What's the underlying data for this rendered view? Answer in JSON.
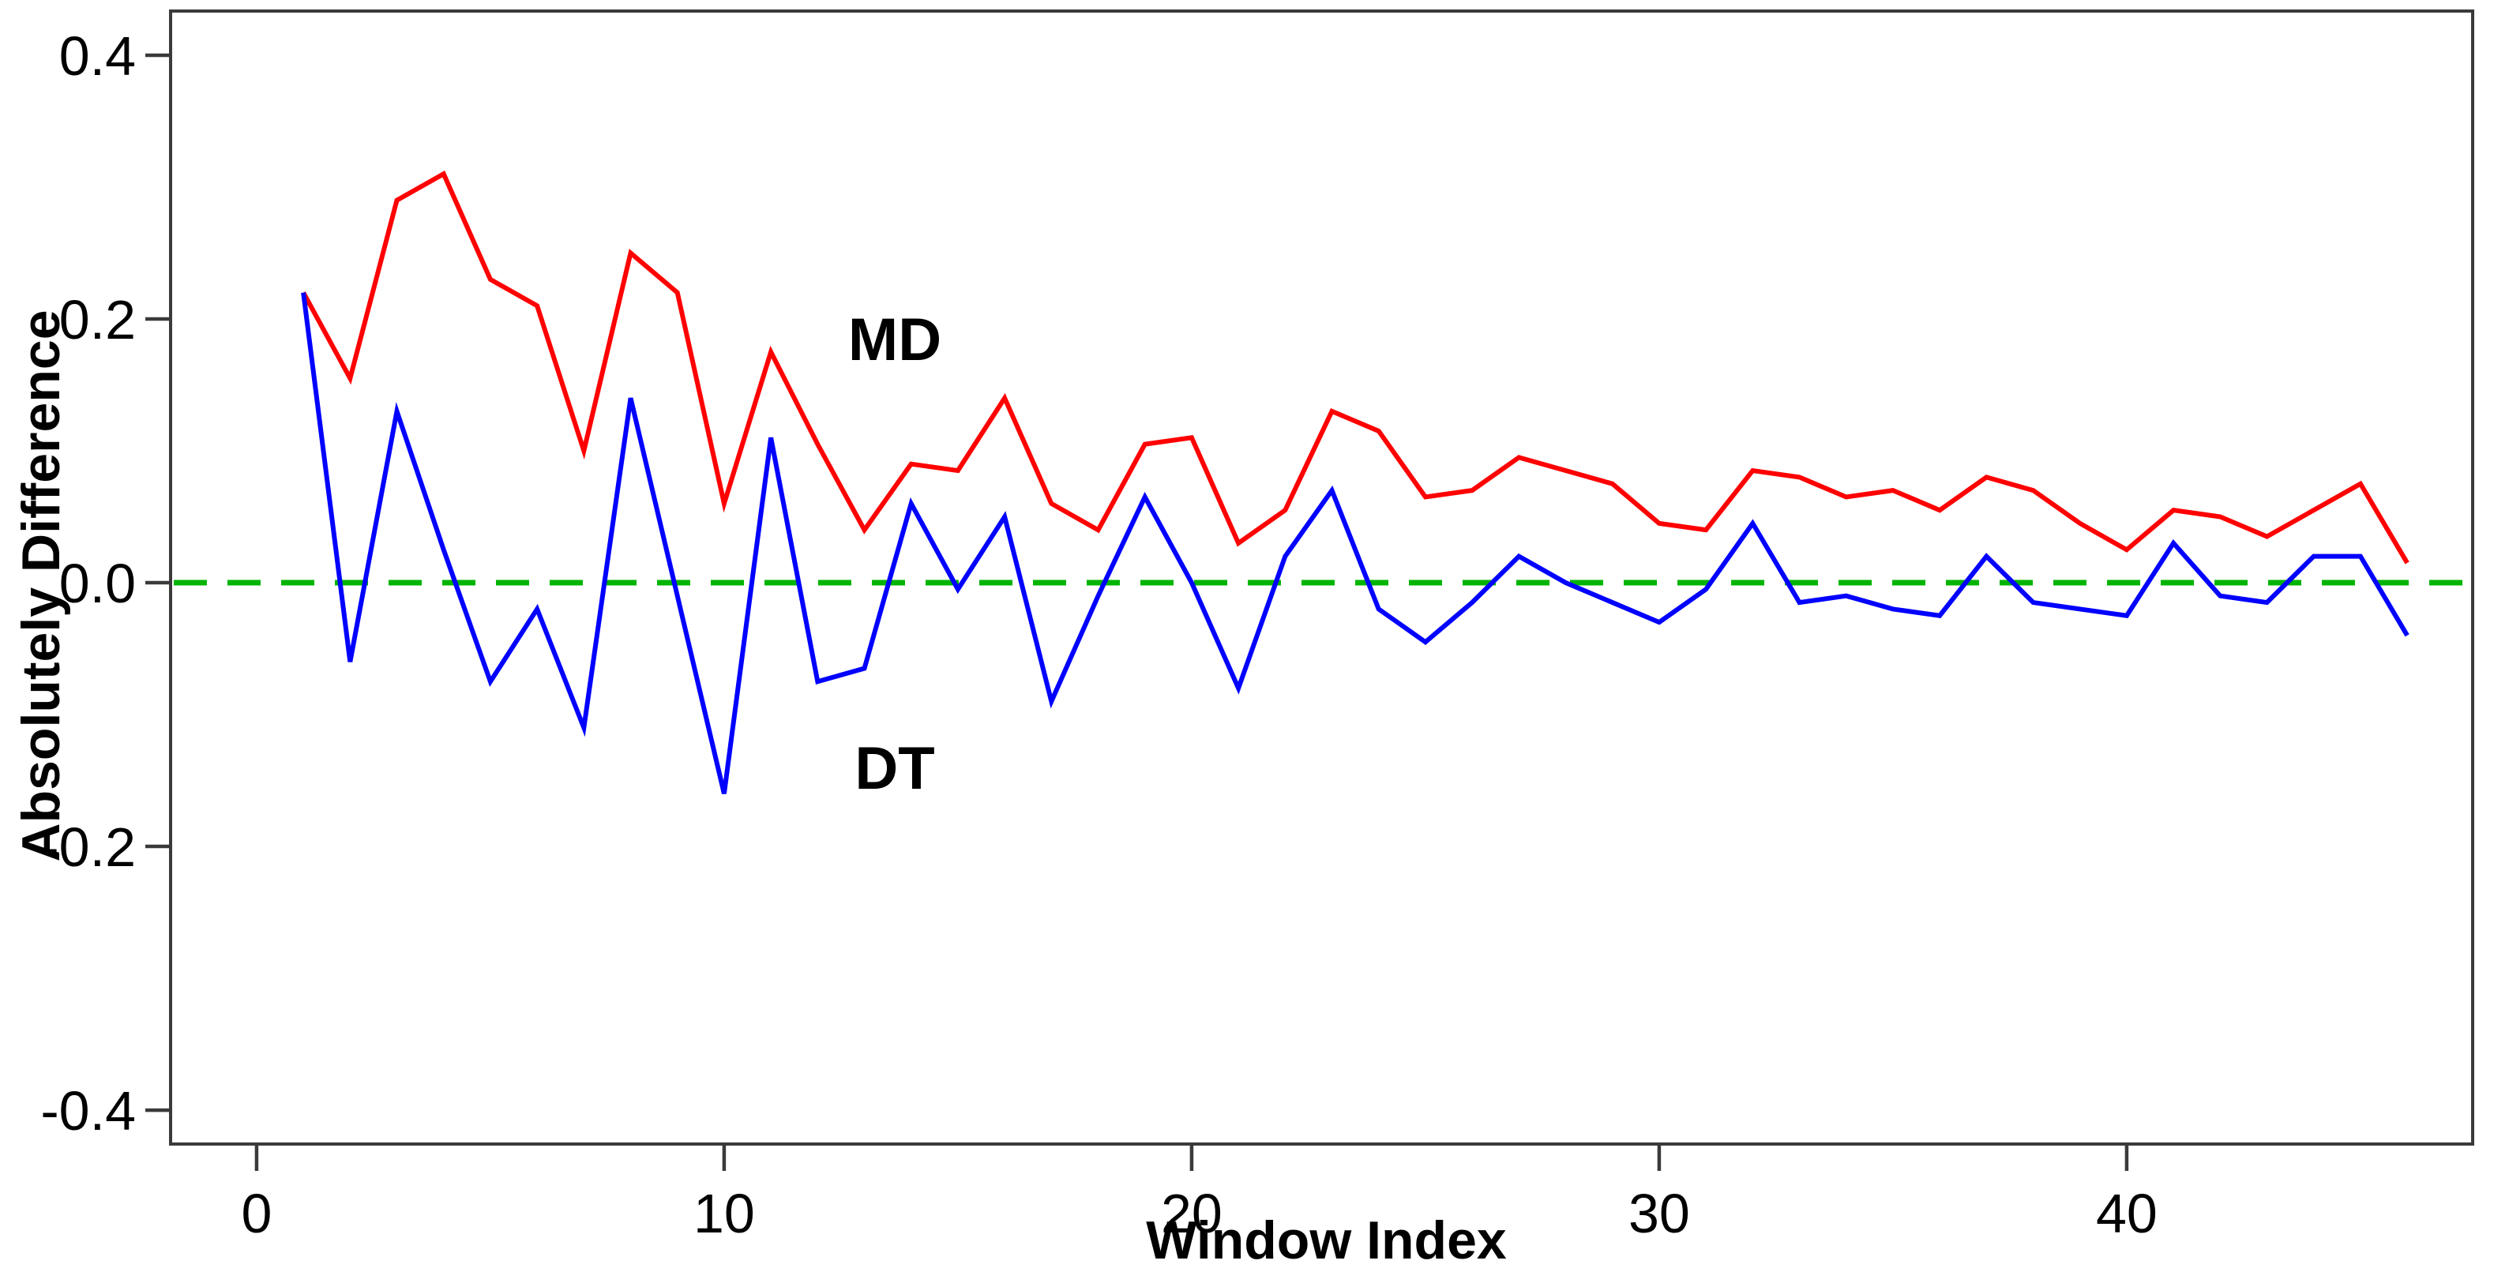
{
  "chart_data": {
    "type": "line",
    "title": "",
    "xlabel": "Window Index",
    "ylabel": "Absolutely Difference",
    "x": [
      1,
      2,
      3,
      4,
      5,
      6,
      7,
      8,
      9,
      10,
      11,
      12,
      13,
      14,
      15,
      16,
      17,
      18,
      19,
      20,
      21,
      22,
      23,
      24,
      25,
      26,
      27,
      28,
      29,
      30,
      31,
      32,
      33,
      34,
      35,
      36,
      37,
      38,
      39,
      40,
      41,
      42,
      43,
      44,
      45,
      46
    ],
    "series": [
      {
        "name": "MD",
        "color": "#ff0000",
        "values": [
          0.22,
          0.155,
          0.29,
          0.31,
          0.23,
          0.21,
          0.1,
          0.25,
          0.22,
          0.06,
          0.175,
          0.105,
          0.04,
          0.09,
          0.085,
          0.14,
          0.06,
          0.04,
          0.105,
          0.11,
          0.03,
          0.055,
          0.13,
          0.115,
          0.065,
          0.07,
          0.095,
          0.085,
          0.075,
          0.045,
          0.04,
          0.085,
          0.08,
          0.065,
          0.07,
          0.055,
          0.08,
          0.07,
          0.045,
          0.025,
          0.055,
          0.05,
          0.035,
          0.055,
          0.075,
          0.015
        ]
      },
      {
        "name": "DT",
        "color": "#0000ff",
        "values": [
          0.22,
          -0.06,
          0.13,
          0.025,
          -0.075,
          -0.02,
          -0.11,
          0.14,
          -0.01,
          -0.16,
          0.11,
          -0.075,
          -0.065,
          0.06,
          -0.005,
          0.05,
          -0.09,
          -0.01,
          0.065,
          0.0,
          -0.08,
          0.02,
          0.07,
          -0.02,
          -0.045,
          -0.015,
          0.02,
          0.0,
          -0.015,
          -0.03,
          -0.005,
          0.045,
          -0.015,
          -0.01,
          -0.02,
          -0.025,
          0.02,
          -0.015,
          -0.02,
          -0.025,
          0.03,
          -0.01,
          -0.015,
          0.02,
          0.02,
          -0.04
        ]
      }
    ],
    "annotations": [
      {
        "text": "MD",
        "x": 13.65,
        "y": 0.185
      },
      {
        "text": "DT",
        "x": 13.65,
        "y": -0.14
      }
    ],
    "zero_line": {
      "y": 0.0,
      "style": "dashed",
      "color": "#00b400"
    },
    "xticks": {
      "values": [
        0,
        10,
        20,
        30,
        40
      ],
      "labels": [
        "0",
        "10",
        "20",
        "30",
        "40"
      ]
    },
    "yticks": {
      "values": [
        0.4,
        0.2,
        0.0,
        -0.2,
        -0.4
      ],
      "labels": [
        "0.4",
        "0.2",
        "0.0",
        "-0.2",
        "-0.4"
      ]
    },
    "xlim": [
      -1.84,
      47.4
    ],
    "ylim": [
      -0.4257,
      0.4335
    ],
    "grid": false,
    "legend_position": "none (inline series labels)",
    "axis_color": "#3a3a3a",
    "text_color": "#000000",
    "background": "#ffffff"
  }
}
